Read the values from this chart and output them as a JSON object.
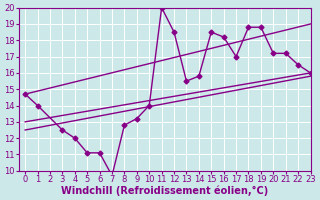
{
  "xlabel": "Windchill (Refroidissement éolien,°C)",
  "bg_color": "#cce8e8",
  "line_color": "#880088",
  "xlim": [
    -0.5,
    23
  ],
  "ylim": [
    10,
    20
  ],
  "yticks": [
    10,
    11,
    12,
    13,
    14,
    15,
    16,
    17,
    18,
    19,
    20
  ],
  "xticks": [
    0,
    1,
    2,
    3,
    4,
    5,
    6,
    7,
    8,
    9,
    10,
    11,
    12,
    13,
    14,
    15,
    16,
    17,
    18,
    19,
    20,
    21,
    22,
    23
  ],
  "zigzag_x": [
    0,
    1,
    3,
    4,
    5,
    6,
    7,
    8,
    9,
    10,
    11,
    12,
    13,
    14,
    15,
    16,
    17,
    18,
    19,
    20,
    21,
    22,
    23
  ],
  "zigzag_y": [
    14.7,
    14.0,
    12.5,
    12.0,
    11.1,
    11.1,
    9.7,
    12.8,
    13.2,
    14.0,
    20.0,
    18.5,
    15.5,
    15.8,
    18.5,
    18.2,
    17.0,
    18.8,
    18.8,
    17.2,
    17.2,
    16.5,
    16.0
  ],
  "trend1_x": [
    0,
    23
  ],
  "trend1_y": [
    14.7,
    19.0
  ],
  "trend2_x": [
    0,
    23
  ],
  "trend2_y": [
    13.0,
    16.0
  ],
  "trend3_x": [
    0,
    23
  ],
  "trend3_y": [
    12.5,
    15.8
  ],
  "marker": "D",
  "markersize": 2.5,
  "linewidth": 1.0,
  "xlabel_fontsize": 7,
  "tick_fontsize": 6
}
